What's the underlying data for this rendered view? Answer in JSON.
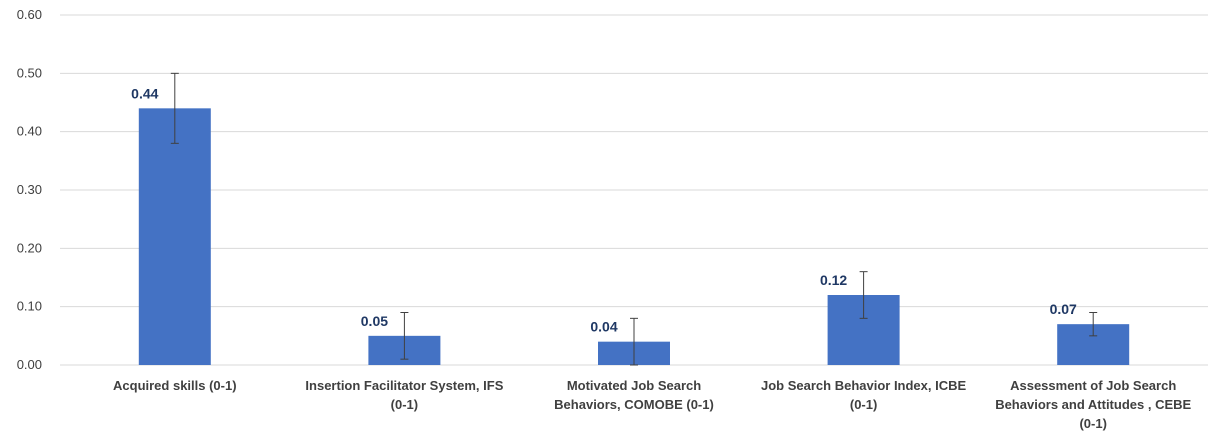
{
  "chart_data": {
    "type": "bar",
    "title": "",
    "xlabel": "",
    "ylabel": "",
    "ylim": [
      0,
      0.6
    ],
    "yticks": [
      "0.00",
      "0.10",
      "0.20",
      "0.30",
      "0.40",
      "0.50",
      "0.60"
    ],
    "grid": true,
    "legend": "none",
    "categories": [
      [
        "Acquired skills (0-1)"
      ],
      [
        "Insertion Facilitator System, IFS",
        "(0-1)"
      ],
      [
        "Motivated Job Search",
        "Behaviors, COMOBE (0-1)"
      ],
      [
        "Job Search Behavior Index, ICBE",
        "(0-1)"
      ],
      [
        "Assessment of Job Search",
        "Behaviors and Attitudes , CEBE",
        "(0-1)"
      ]
    ],
    "values": [
      0.44,
      0.05,
      0.04,
      0.12,
      0.07
    ],
    "data_labels": [
      "0.44",
      "0.05",
      "0.04",
      "0.12",
      "0.07"
    ],
    "error_low": [
      0.38,
      0.01,
      0.0,
      0.08,
      0.05
    ],
    "error_high": [
      0.5,
      0.09,
      0.08,
      0.16,
      0.09
    ],
    "colors": {
      "bar": "#4472c4",
      "grid": "#d9d9d9",
      "error": "#404040",
      "data_label": "#1f3864"
    }
  }
}
